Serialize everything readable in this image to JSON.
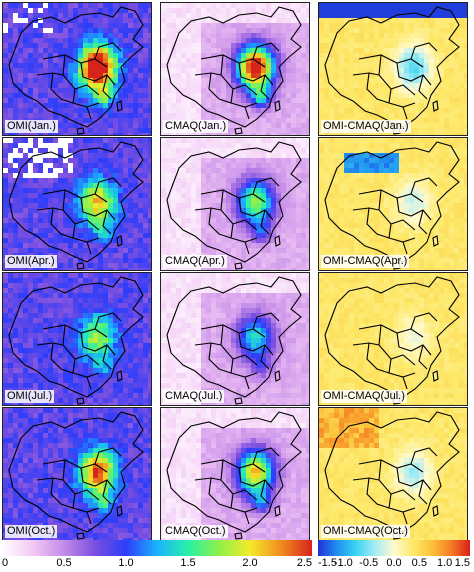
{
  "panels": [
    {
      "label": "OMI(Jan.)",
      "kind": "omi",
      "month": "jan"
    },
    {
      "label": "CMAQ(Jan.)",
      "kind": "cmaq",
      "month": "jan"
    },
    {
      "label": "OMI-CMAQ(Jan.)",
      "kind": "diff",
      "month": "jan"
    },
    {
      "label": "OMI(Apr.)",
      "kind": "omi",
      "month": "apr"
    },
    {
      "label": "CMAQ(Apr.)",
      "kind": "cmaq",
      "month": "apr"
    },
    {
      "label": "OMI-CMAQ(Apr.)",
      "kind": "diff",
      "month": "apr"
    },
    {
      "label": "OMI(Jul.)",
      "kind": "omi",
      "month": "jul"
    },
    {
      "label": "CMAQ(Jul.)",
      "kind": "cmaq",
      "month": "jul"
    },
    {
      "label": "OMI-CMAQ(Jul.)",
      "kind": "diff",
      "month": "jul"
    },
    {
      "label": "OMI(Oct.)",
      "kind": "omi",
      "month": "oct"
    },
    {
      "label": "CMAQ(Oct.)",
      "kind": "cmaq",
      "month": "oct"
    },
    {
      "label": "OMI-CMAQ(Oct.)",
      "kind": "diff",
      "month": "oct"
    }
  ],
  "colorbars": {
    "column": {
      "ticks": [
        "0",
        "0.5",
        "1.0",
        "1.5",
        "2.0",
        "2.5"
      ],
      "colors": [
        "#ffffff",
        "#f3c8f5",
        "#c38be8",
        "#7a4fe0",
        "#2d3dfa",
        "#1ab3ff",
        "#29f0a8",
        "#8ef04a",
        "#f4ea2a",
        "#f08c1e",
        "#d8231b"
      ]
    },
    "diff": {
      "ticks": [
        "-1.5",
        "-1.0",
        "-0.5",
        "0.0",
        "0.5",
        "1.0",
        "1.5"
      ],
      "colors": [
        "#1f2fd8",
        "#1f8ff0",
        "#39d3f2",
        "#a5ecf6",
        "#fffad0",
        "#fde96a",
        "#fbc13a",
        "#f57d22",
        "#d91f1a"
      ]
    }
  }
}
